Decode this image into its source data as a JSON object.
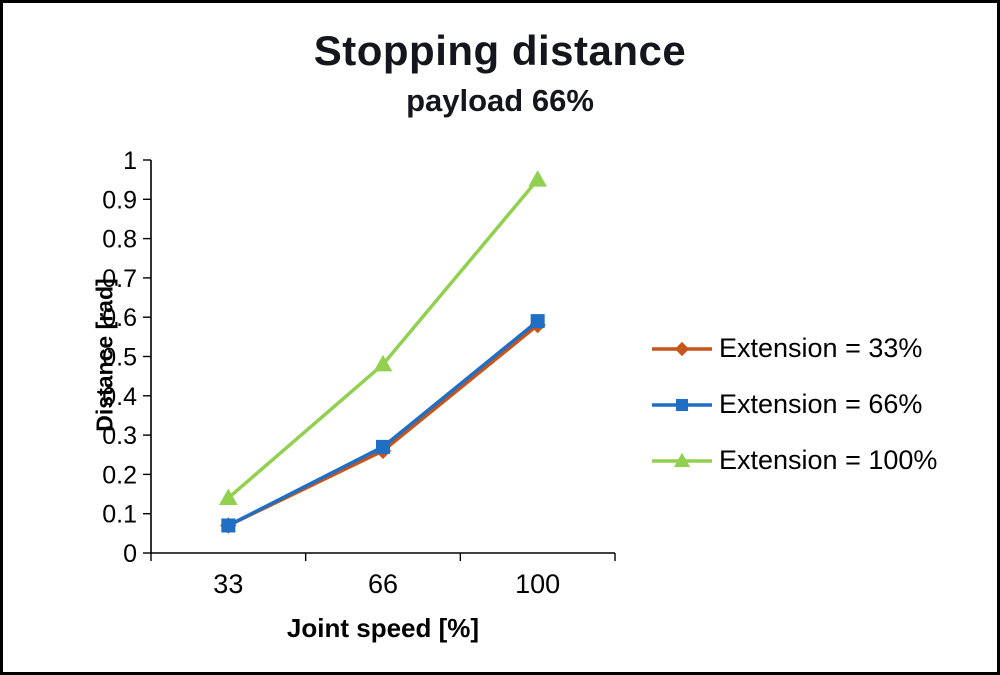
{
  "title": "Stopping distance",
  "subtitle": "payload 66%",
  "chart_data": {
    "type": "line",
    "categories": [
      "33",
      "66",
      "100"
    ],
    "xlabel": "Joint speed [%]",
    "ylabel": "Distance [rad]",
    "ylim": [
      0,
      1
    ],
    "ytick_step": 0.1,
    "grid": false,
    "legend_position": "right",
    "series": [
      {
        "name": "Extension = 33%",
        "values": [
          0.07,
          0.26,
          0.58
        ],
        "color": "#C7541A",
        "marker": "diamond"
      },
      {
        "name": "Extension = 66%",
        "values": [
          0.07,
          0.27,
          0.59
        ],
        "color": "#1F6FC5",
        "marker": "square"
      },
      {
        "name": "Extension = 100%",
        "values": [
          0.14,
          0.48,
          0.95
        ],
        "color": "#92D050",
        "marker": "triangle"
      }
    ]
  }
}
